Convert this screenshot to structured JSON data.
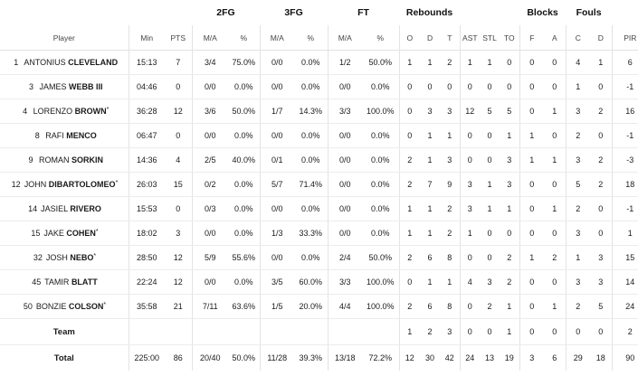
{
  "groups": {
    "fg2": "2FG",
    "fg3": "3FG",
    "ft": "FT",
    "reb": "Rebounds",
    "blk": "Blocks",
    "fouls": "Fouls"
  },
  "headers": [
    "Player",
    "Min",
    "PTS",
    "M/A",
    "%",
    "M/A",
    "%",
    "M/A",
    "%",
    "O",
    "D",
    "T",
    "AST",
    "STL",
    "TO",
    "F",
    "A",
    "C",
    "D",
    "PIR"
  ],
  "players": [
    {
      "num": "1",
      "first": "ANTONIUS",
      "last": "CLEVELAND",
      "starter": "",
      "min": "15:13",
      "pts": "7",
      "fg2m": "3/4",
      "fg2p": "75.0%",
      "fg3m": "0/0",
      "fg3p": "0.0%",
      "ftm": "1/2",
      "ftp": "50.0%",
      "o": "1",
      "d": "1",
      "t": "2",
      "ast": "1",
      "stl": "1",
      "to": "0",
      "bf": "0",
      "ba": "0",
      "fc": "4",
      "fd": "1",
      "pir": "6"
    },
    {
      "num": "3",
      "first": "JAMES",
      "last": "WEBB III",
      "starter": "",
      "min": "04:46",
      "pts": "0",
      "fg2m": "0/0",
      "fg2p": "0.0%",
      "fg3m": "0/0",
      "fg3p": "0.0%",
      "ftm": "0/0",
      "ftp": "0.0%",
      "o": "0",
      "d": "0",
      "t": "0",
      "ast": "0",
      "stl": "0",
      "to": "0",
      "bf": "0",
      "ba": "0",
      "fc": "1",
      "fd": "0",
      "pir": "-1"
    },
    {
      "num": "4",
      "first": "LORENZO",
      "last": "BROWN",
      "starter": "*",
      "min": "36:28",
      "pts": "12",
      "fg2m": "3/6",
      "fg2p": "50.0%",
      "fg3m": "1/7",
      "fg3p": "14.3%",
      "ftm": "3/3",
      "ftp": "100.0%",
      "o": "0",
      "d": "3",
      "t": "3",
      "ast": "12",
      "stl": "5",
      "to": "5",
      "bf": "0",
      "ba": "1",
      "fc": "3",
      "fd": "2",
      "pir": "16"
    },
    {
      "num": "8",
      "first": "RAFI",
      "last": "MENCO",
      "starter": "",
      "min": "06:47",
      "pts": "0",
      "fg2m": "0/0",
      "fg2p": "0.0%",
      "fg3m": "0/0",
      "fg3p": "0.0%",
      "ftm": "0/0",
      "ftp": "0.0%",
      "o": "0",
      "d": "1",
      "t": "1",
      "ast": "0",
      "stl": "0",
      "to": "1",
      "bf": "1",
      "ba": "0",
      "fc": "2",
      "fd": "0",
      "pir": "-1"
    },
    {
      "num": "9",
      "first": "ROMAN",
      "last": "SORKIN",
      "starter": "",
      "min": "14:36",
      "pts": "4",
      "fg2m": "2/5",
      "fg2p": "40.0%",
      "fg3m": "0/1",
      "fg3p": "0.0%",
      "ftm": "0/0",
      "ftp": "0.0%",
      "o": "2",
      "d": "1",
      "t": "3",
      "ast": "0",
      "stl": "0",
      "to": "3",
      "bf": "1",
      "ba": "1",
      "fc": "3",
      "fd": "2",
      "pir": "-3"
    },
    {
      "num": "12",
      "first": "JOHN",
      "last": "DIBARTOLOMEO",
      "starter": "*",
      "min": "26:03",
      "pts": "15",
      "fg2m": "0/2",
      "fg2p": "0.0%",
      "fg3m": "5/7",
      "fg3p": "71.4%",
      "ftm": "0/0",
      "ftp": "0.0%",
      "o": "2",
      "d": "7",
      "t": "9",
      "ast": "3",
      "stl": "1",
      "to": "3",
      "bf": "0",
      "ba": "0",
      "fc": "5",
      "fd": "2",
      "pir": "18"
    },
    {
      "num": "14",
      "first": "JASIEL",
      "last": "RIVERO",
      "starter": "",
      "min": "15:53",
      "pts": "0",
      "fg2m": "0/3",
      "fg2p": "0.0%",
      "fg3m": "0/0",
      "fg3p": "0.0%",
      "ftm": "0/0",
      "ftp": "0.0%",
      "o": "1",
      "d": "1",
      "t": "2",
      "ast": "3",
      "stl": "1",
      "to": "1",
      "bf": "0",
      "ba": "1",
      "fc": "2",
      "fd": "0",
      "pir": "-1"
    },
    {
      "num": "15",
      "first": "JAKE",
      "last": "COHEN",
      "starter": "*",
      "min": "18:02",
      "pts": "3",
      "fg2m": "0/0",
      "fg2p": "0.0%",
      "fg3m": "1/3",
      "fg3p": "33.3%",
      "ftm": "0/0",
      "ftp": "0.0%",
      "o": "1",
      "d": "1",
      "t": "2",
      "ast": "1",
      "stl": "0",
      "to": "0",
      "bf": "0",
      "ba": "0",
      "fc": "3",
      "fd": "0",
      "pir": "1"
    },
    {
      "num": "32",
      "first": "JOSH",
      "last": "NEBO",
      "starter": "*",
      "min": "28:50",
      "pts": "12",
      "fg2m": "5/9",
      "fg2p": "55.6%",
      "fg3m": "0/0",
      "fg3p": "0.0%",
      "ftm": "2/4",
      "ftp": "50.0%",
      "o": "2",
      "d": "6",
      "t": "8",
      "ast": "0",
      "stl": "0",
      "to": "2",
      "bf": "1",
      "ba": "2",
      "fc": "1",
      "fd": "3",
      "pir": "15"
    },
    {
      "num": "45",
      "first": "TAMIR",
      "last": "BLATT",
      "starter": "",
      "min": "22:24",
      "pts": "12",
      "fg2m": "0/0",
      "fg2p": "0.0%",
      "fg3m": "3/5",
      "fg3p": "60.0%",
      "ftm": "3/3",
      "ftp": "100.0%",
      "o": "0",
      "d": "1",
      "t": "1",
      "ast": "4",
      "stl": "3",
      "to": "2",
      "bf": "0",
      "ba": "0",
      "fc": "3",
      "fd": "3",
      "pir": "14"
    },
    {
      "num": "50",
      "first": "BONZIE",
      "last": "COLSON",
      "starter": "*",
      "min": "35:58",
      "pts": "21",
      "fg2m": "7/11",
      "fg2p": "63.6%",
      "fg3m": "1/5",
      "fg3p": "20.0%",
      "ftm": "4/4",
      "ftp": "100.0%",
      "o": "2",
      "d": "6",
      "t": "8",
      "ast": "0",
      "stl": "2",
      "to": "1",
      "bf": "0",
      "ba": "1",
      "fc": "2",
      "fd": "5",
      "pir": "24"
    }
  ],
  "team": {
    "label": "Team",
    "o": "1",
    "d": "2",
    "t": "3",
    "ast": "0",
    "stl": "0",
    "to": "1",
    "bf": "0",
    "ba": "0",
    "fc": "0",
    "fd": "0",
    "pir": "2"
  },
  "total": {
    "label": "Total",
    "min": "225:00",
    "pts": "86",
    "fg2m": "20/40",
    "fg2p": "50.0%",
    "fg3m": "11/28",
    "fg3p": "39.3%",
    "ftm": "13/18",
    "ftp": "72.2%",
    "o": "12",
    "d": "30",
    "t": "42",
    "ast": "24",
    "stl": "13",
    "to": "19",
    "bf": "3",
    "ba": "6",
    "fc": "29",
    "fd": "18",
    "pir": "90"
  },
  "colors": {
    "text": "#1a1a1a",
    "header": "#444444",
    "divider": "#e3e3e3"
  }
}
